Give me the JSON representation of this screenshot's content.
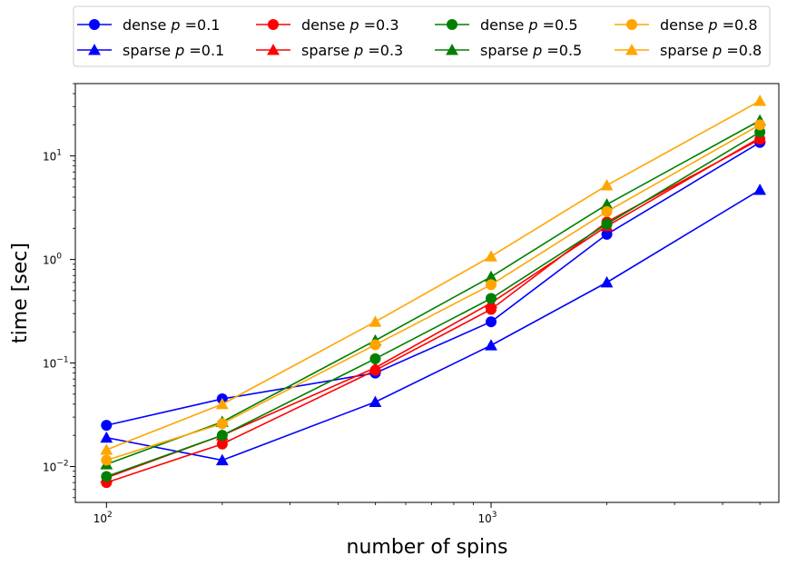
{
  "chart_data": {
    "type": "line",
    "xscale": "log",
    "yscale": "log",
    "xlabel": "number of spins",
    "ylabel": "time [sec]",
    "xlim": [
      83,
      5600
    ],
    "ylim": [
      0.0045,
      50
    ],
    "x": [
      100,
      200,
      500,
      1000,
      2000,
      5000
    ],
    "x_ticks": [
      {
        "value": 100,
        "base": "10",
        "exp": "2"
      },
      {
        "value": 1000,
        "base": "10",
        "exp": "3"
      }
    ],
    "y_ticks": [
      {
        "value": 0.01,
        "base": "10",
        "exp": "−2"
      },
      {
        "value": 0.1,
        "base": "10",
        "exp": "−1"
      },
      {
        "value": 1,
        "base": "10",
        "exp": "0"
      },
      {
        "value": 10,
        "base": "10",
        "exp": "1"
      }
    ],
    "grid": false,
    "legend_position": "top, above plot, 4 columns",
    "series": [
      {
        "name": "dense p =0.1",
        "prefix": "dense ",
        "p": "0.1",
        "color": "#0000ff",
        "marker": "circle",
        "values": [
          0.025,
          0.045,
          0.08,
          0.25,
          1.75,
          13.5
        ]
      },
      {
        "name": "sparse p =0.1",
        "prefix": "sparse ",
        "p": "0.1",
        "color": "#0000ff",
        "marker": "triangle",
        "values": [
          0.019,
          0.0115,
          0.042,
          0.148,
          0.6,
          4.7
        ]
      },
      {
        "name": "dense p =0.3",
        "prefix": "dense ",
        "p": "0.3",
        "color": "#ff0000",
        "marker": "circle",
        "values": [
          0.007,
          0.0165,
          0.085,
          0.33,
          2.3,
          14.5
        ]
      },
      {
        "name": "sparse p =0.3",
        "prefix": "sparse ",
        "p": "0.3",
        "color": "#ff0000",
        "marker": "triangle",
        "values": [
          0.0078,
          0.02,
          0.09,
          0.38,
          2.1,
          15.0
        ]
      },
      {
        "name": "dense p =0.5",
        "prefix": "dense ",
        "p": "0.5",
        "color": "#008000",
        "marker": "circle",
        "values": [
          0.008,
          0.02,
          0.11,
          0.42,
          2.2,
          17.0
        ]
      },
      {
        "name": "sparse p =0.5",
        "prefix": "sparse ",
        "p": "0.5",
        "color": "#008000",
        "marker": "triangle",
        "values": [
          0.0105,
          0.027,
          0.165,
          0.68,
          3.4,
          22.0
        ]
      },
      {
        "name": "dense p =0.8",
        "prefix": "dense ",
        "p": "0.8",
        "color": "#ffa500",
        "marker": "circle",
        "values": [
          0.0115,
          0.026,
          0.15,
          0.57,
          2.9,
          20.0
        ]
      },
      {
        "name": "sparse p =0.8",
        "prefix": "sparse ",
        "p": "0.8",
        "color": "#ffa500",
        "marker": "triangle",
        "values": [
          0.0145,
          0.04,
          0.25,
          1.07,
          5.2,
          34.0
        ]
      }
    ]
  }
}
